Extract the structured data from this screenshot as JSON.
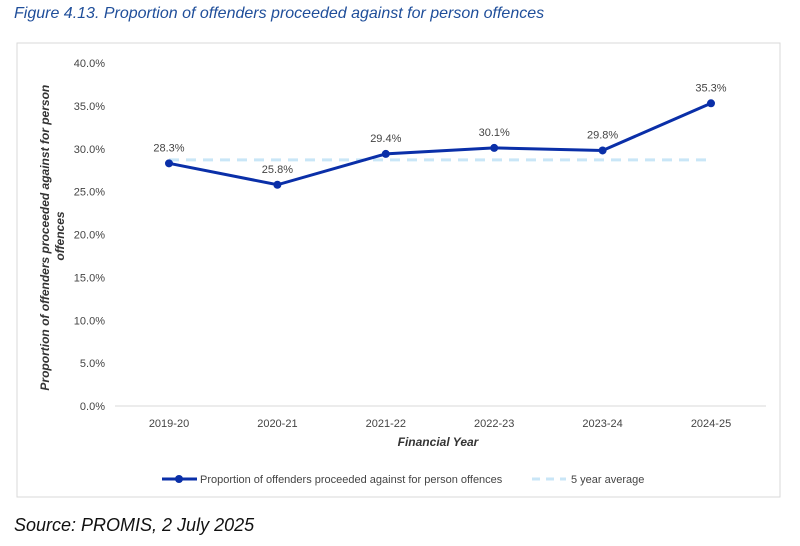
{
  "figure_title": "Figure 4.13. Proportion of offenders proceeded against for person offences",
  "source": "Source: PROMIS, 2 July 2025",
  "chart_data": {
    "type": "line",
    "title": "",
    "xlabel": "Financial Year",
    "ylabel": "Proportion of offenders proceeded against for person offences",
    "categories": [
      "2019-20",
      "2020-21",
      "2021-22",
      "2022-23",
      "2023-24",
      "2024-25"
    ],
    "ylim": [
      0,
      40
    ],
    "yticks": [
      "0.0%",
      "5.0%",
      "10.0%",
      "15.0%",
      "20.0%",
      "25.0%",
      "30.0%",
      "35.0%",
      "40.0%"
    ],
    "grid": false,
    "legend_position": "bottom",
    "series": [
      {
        "name": "Proportion of offenders proceeded against for person offences",
        "values": [
          28.3,
          25.8,
          29.4,
          30.1,
          29.8,
          35.3
        ],
        "labels": [
          "28.3%",
          "25.8%",
          "29.4%",
          "30.1%",
          "29.8%",
          "35.3%"
        ],
        "color": "#0a2fa8",
        "style": "solid-markers"
      },
      {
        "name": "5 year average",
        "values": [
          28.7,
          28.7,
          28.7,
          28.7,
          28.7,
          28.7
        ],
        "color": "#c9e6f7",
        "style": "dashed"
      }
    ]
  }
}
